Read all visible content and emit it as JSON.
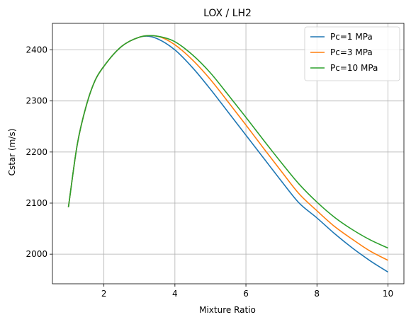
{
  "chart_data": {
    "type": "line",
    "title": "LOX / LH2",
    "xlabel": "Mixture Ratio",
    "ylabel": "Cstar (m/s)",
    "xlim": [
      0.55,
      10.45
    ],
    "ylim": [
      1942,
      2452
    ],
    "xticks": [
      2,
      4,
      6,
      8,
      10
    ],
    "yticks": [
      2000,
      2100,
      2200,
      2300,
      2400
    ],
    "grid": true,
    "legend_position": "upper-right",
    "series": [
      {
        "name": "Pc=1 MPa",
        "color": "#1f77b4",
        "x": [
          1.0,
          1.25,
          1.5,
          1.75,
          2.0,
          2.5,
          3.0,
          3.2,
          3.5,
          4.0,
          4.5,
          5.0,
          5.5,
          6.0,
          6.5,
          7.0,
          7.5,
          8.0,
          8.5,
          9.0,
          9.5,
          10.0
        ],
        "y": [
          2092,
          2215,
          2290,
          2340,
          2368,
          2407,
          2425,
          2427,
          2422,
          2400,
          2365,
          2323,
          2278,
          2233,
          2188,
          2143,
          2100,
          2071,
          2040,
          2012,
          1987,
          1965
        ]
      },
      {
        "name": "Pc=3 MPa",
        "color": "#ff7f0e",
        "x": [
          1.0,
          1.25,
          1.5,
          1.75,
          2.0,
          2.5,
          3.0,
          3.3,
          3.6,
          4.0,
          4.5,
          5.0,
          5.5,
          6.0,
          6.5,
          7.0,
          7.5,
          8.0,
          8.5,
          9.0,
          9.5,
          10.0
        ],
        "y": [
          2092,
          2215,
          2290,
          2340,
          2368,
          2407,
          2425,
          2428,
          2425,
          2410,
          2380,
          2342,
          2298,
          2253,
          2207,
          2162,
          2118,
          2085,
          2054,
          2029,
          2006,
          1988
        ]
      },
      {
        "name": "Pc=10 MPa",
        "color": "#2ca02c",
        "x": [
          1.0,
          1.25,
          1.5,
          1.75,
          2.0,
          2.5,
          3.0,
          3.3,
          3.7,
          4.0,
          4.5,
          5.0,
          5.5,
          6.0,
          6.5,
          7.0,
          7.5,
          8.0,
          8.5,
          9.0,
          9.5,
          10.0
        ],
        "y": [
          2092,
          2215,
          2290,
          2340,
          2368,
          2407,
          2425,
          2428,
          2424,
          2416,
          2390,
          2355,
          2312,
          2268,
          2223,
          2179,
          2137,
          2102,
          2072,
          2048,
          2028,
          2012
        ]
      }
    ]
  }
}
